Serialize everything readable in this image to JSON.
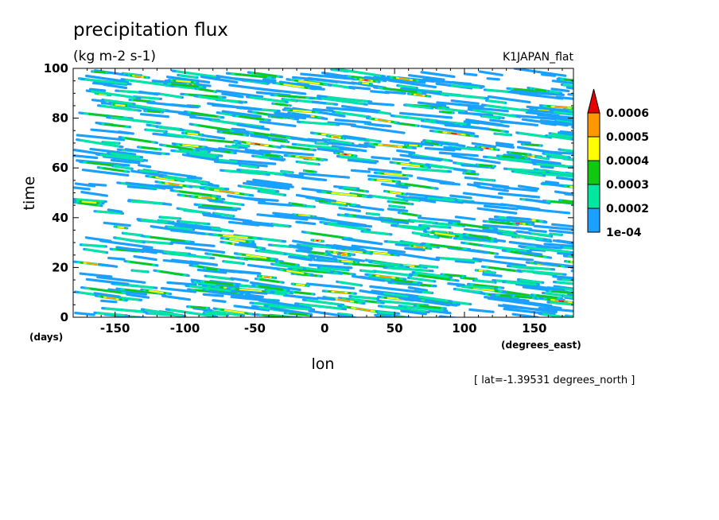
{
  "chart_data": {
    "type": "heatmap",
    "title": "precipitation flux",
    "units": "(kg m-2 s-1)",
    "dataset_label": "K1JAPAN_flat",
    "xlabel": "lon",
    "xunit": "(degrees_east)",
    "ylabel": "time",
    "yunit": "(days)",
    "xlim": [
      -180,
      178
    ],
    "ylim": [
      0,
      100
    ],
    "x_ticks": [
      "-150",
      "-100",
      "-50",
      "0",
      "50",
      "100",
      "150"
    ],
    "x_tick_values": [
      -150,
      -100,
      -50,
      0,
      50,
      100,
      150
    ],
    "y_ticks": [
      "0",
      "20",
      "40",
      "60",
      "80",
      "100"
    ],
    "y_tick_values": [
      0,
      20,
      40,
      60,
      80,
      100
    ],
    "colorbar": {
      "labels": [
        "0.0006",
        "0.0005",
        "0.0004",
        "0.0003",
        "0.0002",
        "1e-04"
      ],
      "levels": [
        0.0001,
        0.0002,
        0.0003,
        0.0004,
        0.0005,
        0.0006
      ],
      "colors": [
        "#1aa0ff",
        "#00e8a0",
        "#10c810",
        "#ffff00",
        "#ff9800",
        "#e60000"
      ],
      "extend": "max"
    },
    "footnote": "[ lat=-1.39531 degrees_north ]"
  }
}
